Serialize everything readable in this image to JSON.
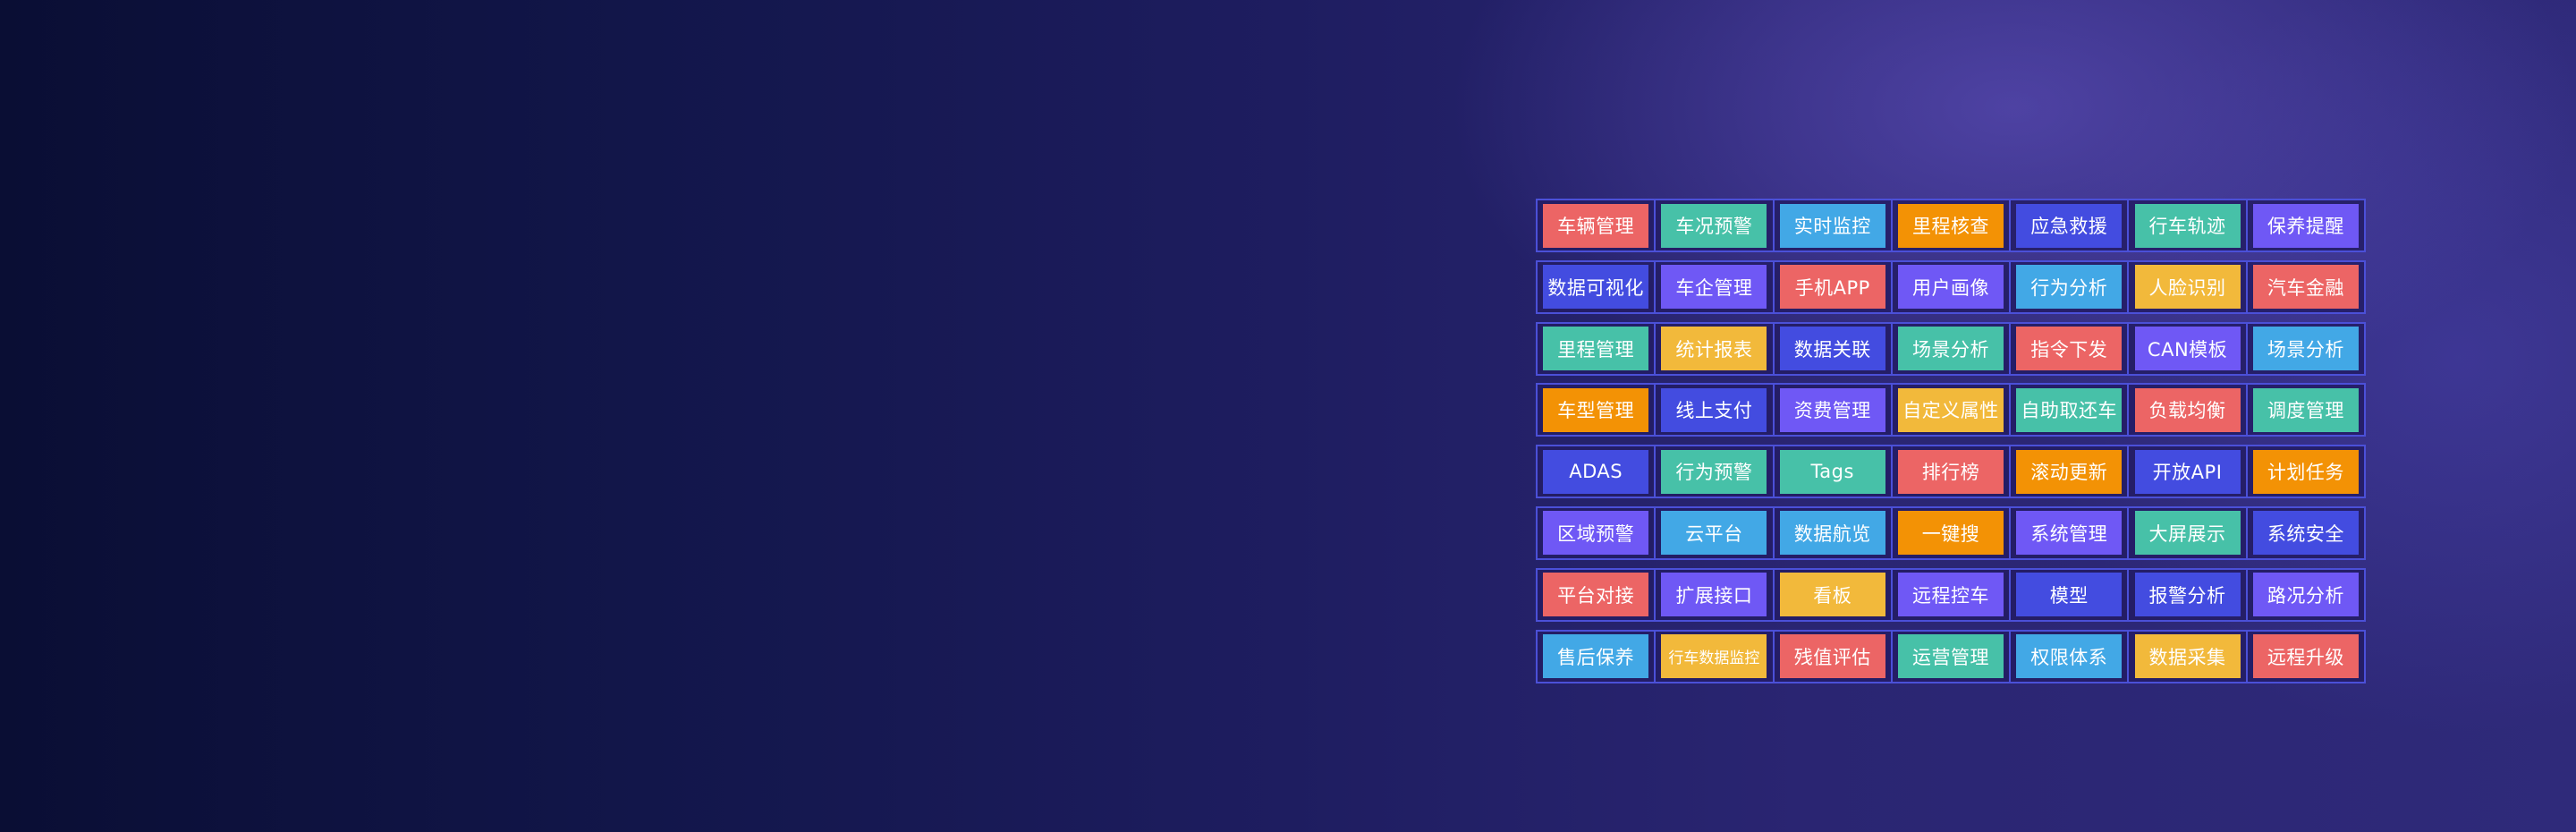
{
  "colors": {
    "red": "#ec6565",
    "teal": "#47c1a8",
    "blue": "#42a8e6",
    "orange": "#f39205",
    "indigo": "#434ce0",
    "purple": "#6f58f5",
    "yellow": "#f2b93b",
    "border": "#4b50d8"
  },
  "rows": [
    [
      {
        "label": "车辆管理",
        "color": "red"
      },
      {
        "label": "车况预警",
        "color": "teal"
      },
      {
        "label": "实时监控",
        "color": "blue"
      },
      {
        "label": "里程核查",
        "color": "orange"
      },
      {
        "label": "应急救援",
        "color": "indigo"
      },
      {
        "label": "行车轨迹",
        "color": "teal"
      },
      {
        "label": "保养提醒",
        "color": "purple"
      }
    ],
    [
      {
        "label": "数据可视化",
        "color": "indigo"
      },
      {
        "label": "车企管理",
        "color": "purple"
      },
      {
        "label": "手机APP",
        "color": "red"
      },
      {
        "label": "用户画像",
        "color": "purple"
      },
      {
        "label": "行为分析",
        "color": "blue"
      },
      {
        "label": "人脸识别",
        "color": "yellow"
      },
      {
        "label": "汽车金融",
        "color": "red"
      }
    ],
    [
      {
        "label": "里程管理",
        "color": "teal"
      },
      {
        "label": "统计报表",
        "color": "yellow"
      },
      {
        "label": "数据关联",
        "color": "indigo"
      },
      {
        "label": "场景分析",
        "color": "teal"
      },
      {
        "label": "指令下发",
        "color": "red"
      },
      {
        "label": "CAN模板",
        "color": "purple"
      },
      {
        "label": "场景分析",
        "color": "blue"
      }
    ],
    [
      {
        "label": "车型管理",
        "color": "orange"
      },
      {
        "label": "线上支付",
        "color": "indigo"
      },
      {
        "label": "资费管理",
        "color": "purple"
      },
      {
        "label": "自定义属性",
        "color": "yellow"
      },
      {
        "label": "自助取还车",
        "color": "teal"
      },
      {
        "label": "负载均衡",
        "color": "red"
      },
      {
        "label": "调度管理",
        "color": "teal"
      }
    ],
    [
      {
        "label": "ADAS",
        "color": "indigo"
      },
      {
        "label": "行为预警",
        "color": "teal"
      },
      {
        "label": "Tags",
        "color": "teal"
      },
      {
        "label": "排行榜",
        "color": "red"
      },
      {
        "label": "滚动更新",
        "color": "orange"
      },
      {
        "label": "开放API",
        "color": "indigo"
      },
      {
        "label": "计划任务",
        "color": "orange"
      }
    ],
    [
      {
        "label": "区域预警",
        "color": "purple"
      },
      {
        "label": "云平台",
        "color": "blue"
      },
      {
        "label": "数据航览",
        "color": "blue"
      },
      {
        "label": "一键搜",
        "color": "orange"
      },
      {
        "label": "系统管理",
        "color": "purple"
      },
      {
        "label": "大屏展示",
        "color": "teal"
      },
      {
        "label": "系统安全",
        "color": "indigo"
      }
    ],
    [
      {
        "label": "平台对接",
        "color": "red"
      },
      {
        "label": "扩展接口",
        "color": "purple"
      },
      {
        "label": "看板",
        "color": "yellow"
      },
      {
        "label": "远程控车",
        "color": "purple"
      },
      {
        "label": "模型",
        "color": "indigo"
      },
      {
        "label": "报警分析",
        "color": "indigo"
      },
      {
        "label": "路况分析",
        "color": "purple"
      }
    ],
    [
      {
        "label": "售后保养",
        "color": "blue"
      },
      {
        "label": "行车数据监控",
        "color": "yellow"
      },
      {
        "label": "残值评估",
        "color": "red"
      },
      {
        "label": "运营管理",
        "color": "teal"
      },
      {
        "label": "权限体系",
        "color": "blue"
      },
      {
        "label": "数据采集",
        "color": "yellow"
      },
      {
        "label": "远程升级",
        "color": "red"
      }
    ]
  ]
}
